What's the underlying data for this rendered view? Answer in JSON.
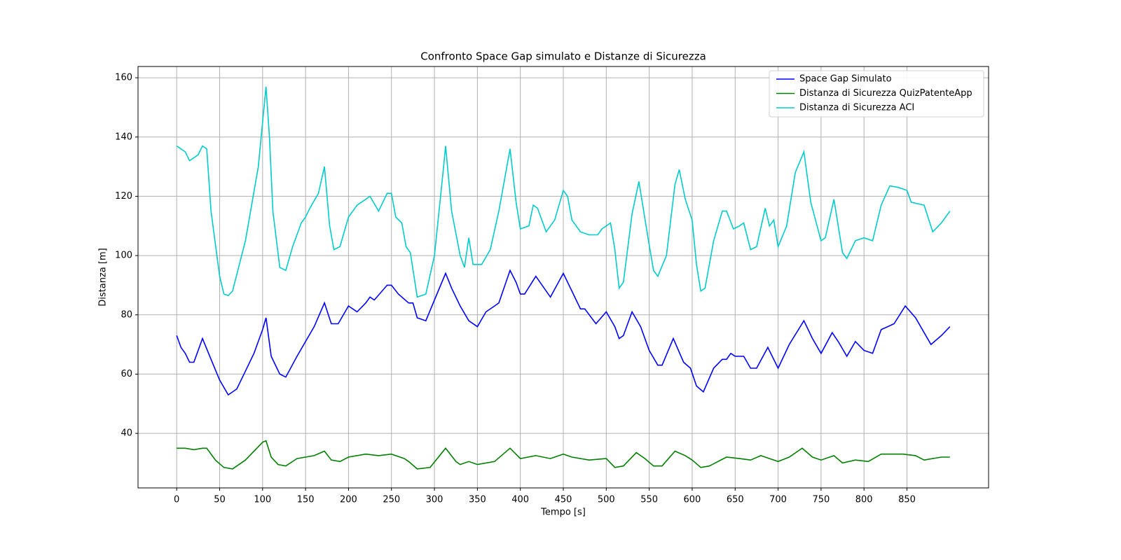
{
  "chart_data": {
    "type": "line",
    "title": "Confronto Space Gap simulato e Distanze di Sicurezza",
    "xlabel": "Tempo [s]",
    "ylabel": "Distanza [m]",
    "xlim": [
      -45,
      945
    ],
    "ylim": [
      21.6,
      163.8
    ],
    "xticks": [
      0,
      50,
      100,
      150,
      200,
      250,
      300,
      350,
      400,
      450,
      500,
      550,
      600,
      650,
      700,
      750,
      800,
      850
    ],
    "yticks": [
      40,
      60,
      80,
      100,
      120,
      140,
      160
    ],
    "grid": true,
    "legend": "upper right",
    "series": [
      {
        "name": "Space Gap Simulato",
        "color": "#0000ff",
        "x": [
          0,
          5,
          10,
          15,
          20,
          30,
          40,
          50,
          60,
          70,
          80,
          90,
          100,
          104,
          110,
          120,
          127,
          140,
          160,
          172,
          180,
          188,
          200,
          210,
          220,
          225,
          230,
          245,
          250,
          258,
          270,
          275,
          280,
          290,
          300,
          313,
          320,
          330,
          340,
          350,
          360,
          370,
          375,
          388,
          395,
          400,
          405,
          418,
          435,
          450,
          460,
          470,
          475,
          488,
          500,
          510,
          515,
          520,
          530,
          540,
          550,
          560,
          565,
          578,
          590,
          598,
          605,
          613,
          625,
          635,
          640,
          645,
          650,
          660,
          668,
          675,
          688,
          700,
          713,
          730,
          740,
          750,
          763,
          770,
          780,
          790,
          800,
          810,
          820,
          835,
          848,
          860,
          870,
          878,
          890,
          900
        ],
        "values": [
          73,
          69,
          67,
          64,
          64,
          72,
          65,
          58,
          53,
          55,
          61,
          67,
          75,
          79,
          66,
          60,
          59,
          66,
          76,
          84,
          77,
          77,
          83,
          81,
          84,
          86,
          85,
          90,
          90,
          87,
          84,
          84,
          79,
          78,
          85,
          94,
          89,
          83,
          78,
          76,
          81,
          83,
          84,
          95,
          91,
          87,
          87,
          93,
          86,
          94,
          88,
          82,
          82,
          77,
          81,
          76,
          72,
          73,
          81,
          76,
          68,
          63,
          63,
          72,
          64,
          62,
          56,
          54,
          62,
          65,
          65,
          67,
          66,
          66,
          62,
          62,
          69,
          62,
          70,
          78,
          72,
          67,
          74,
          71,
          66,
          71,
          68,
          67,
          75,
          77,
          83,
          79,
          74,
          70,
          73,
          76
        ]
      },
      {
        "name": "Distanza di Sicurezza QuizPatenteApp",
        "color": "#008000",
        "x": [
          0,
          10,
          20,
          30,
          35,
          45,
          55,
          65,
          80,
          100,
          104,
          110,
          118,
          127,
          140,
          150,
          160,
          172,
          180,
          190,
          200,
          220,
          235,
          250,
          260,
          265,
          270,
          280,
          295,
          313,
          325,
          330,
          340,
          350,
          370,
          388,
          400,
          418,
          435,
          450,
          460,
          480,
          500,
          510,
          520,
          535,
          545,
          555,
          565,
          580,
          592,
          600,
          610,
          620,
          640,
          655,
          668,
          680,
          690,
          700,
          713,
          728,
          740,
          750,
          765,
          775,
          790,
          805,
          820,
          845,
          860,
          870,
          890,
          900
        ],
        "values": [
          35,
          35,
          34.5,
          35,
          35,
          31,
          28.5,
          28,
          31,
          37,
          37.5,
          32,
          29.5,
          29,
          31.5,
          32,
          32.5,
          34,
          31,
          30.5,
          32,
          33,
          32.5,
          33,
          32,
          31.5,
          30.5,
          28,
          28.5,
          35,
          30.5,
          29.5,
          30.5,
          29.5,
          30.5,
          35,
          31.5,
          32.5,
          31.5,
          33,
          32,
          31,
          31.5,
          28.5,
          29,
          33.5,
          31.5,
          29,
          29,
          34,
          32.5,
          31,
          28.5,
          29,
          32,
          31.5,
          31,
          32.5,
          31.5,
          30.5,
          32,
          35,
          32,
          31,
          32.5,
          30,
          31,
          30.5,
          33,
          33,
          32.5,
          31,
          32,
          32
        ]
      },
      {
        "name": "Distanza di Sicurezza ACI",
        "color": "#00cccc",
        "x": [
          0,
          10,
          15,
          25,
          30,
          35,
          40,
          50,
          55,
          60,
          65,
          80,
          95,
          100,
          104,
          108,
          112,
          120,
          127,
          135,
          145,
          150,
          155,
          165,
          172,
          178,
          183,
          190,
          200,
          210,
          220,
          225,
          235,
          245,
          250,
          255,
          262,
          267,
          272,
          280,
          290,
          300,
          310,
          313,
          320,
          330,
          335,
          340,
          345,
          355,
          365,
          375,
          388,
          395,
          400,
          410,
          415,
          420,
          430,
          440,
          450,
          455,
          460,
          470,
          480,
          490,
          495,
          505,
          510,
          515,
          520,
          530,
          538,
          548,
          555,
          560,
          570,
          580,
          585,
          592,
          600,
          605,
          610,
          615,
          625,
          635,
          640,
          648,
          655,
          660,
          668,
          675,
          685,
          690,
          695,
          700,
          710,
          720,
          730,
          738,
          750,
          755,
          765,
          775,
          780,
          790,
          800,
          810,
          820,
          830,
          840,
          850,
          855,
          870,
          880,
          890,
          900
        ],
        "values": [
          137,
          135,
          132,
          134,
          137,
          136,
          115,
          93,
          87,
          86.5,
          88,
          105,
          130,
          145,
          157,
          140,
          115,
          96,
          95,
          103,
          111,
          113,
          116,
          121,
          130,
          110,
          102,
          103,
          113,
          117,
          119,
          120,
          115,
          121,
          121,
          113,
          111,
          103,
          101,
          86,
          87,
          100,
          128,
          137,
          115,
          100,
          96,
          106,
          97,
          97,
          102,
          115,
          136,
          118,
          109,
          110,
          117,
          116,
          108,
          112,
          122,
          120,
          112,
          108,
          107,
          107,
          109,
          111,
          102,
          89,
          91,
          114,
          125,
          107,
          95,
          93,
          100,
          124,
          129,
          119,
          112,
          97,
          88,
          89,
          105,
          115,
          115,
          109,
          110,
          111,
          102,
          103,
          116,
          110,
          112,
          103,
          110,
          128,
          135,
          118,
          105,
          106,
          119,
          101,
          99,
          105,
          106,
          105,
          117,
          123.5,
          123,
          122,
          118,
          117,
          108,
          111,
          115
        ]
      }
    ]
  }
}
